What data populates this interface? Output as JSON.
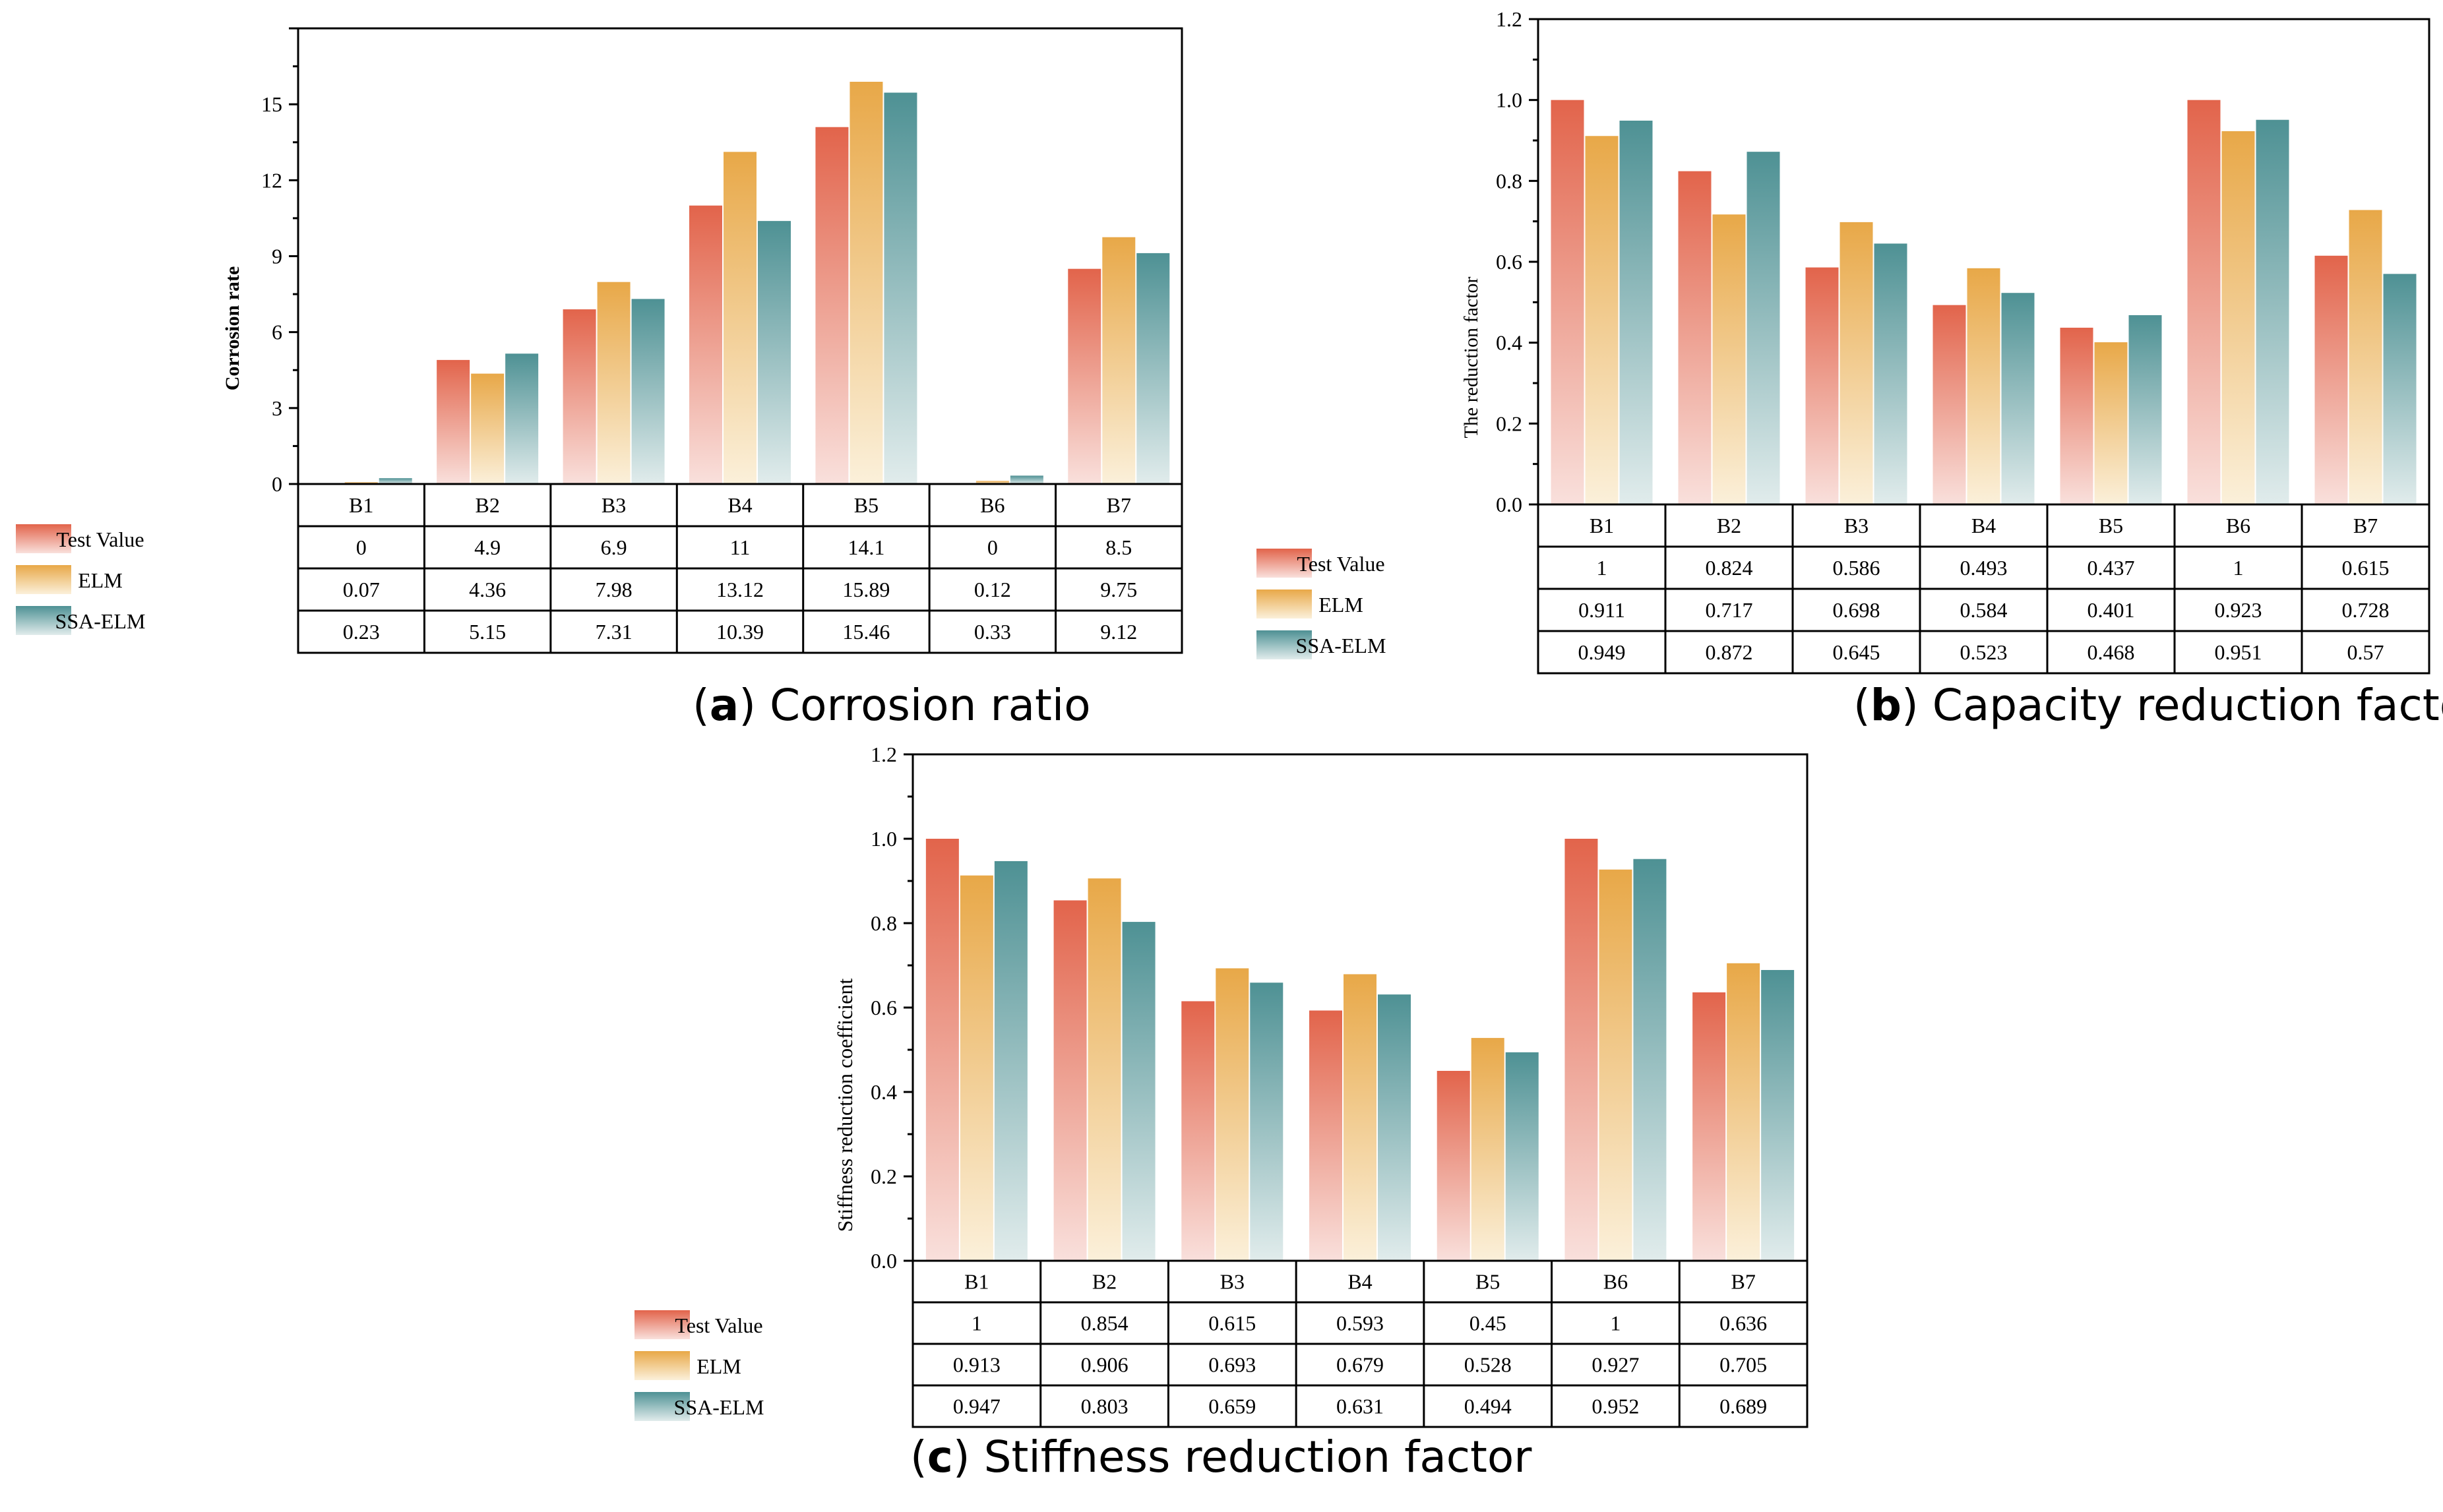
{
  "legend": [
    "Test Value",
    "ELM",
    "SSA-ELM"
  ],
  "colors": {
    "test_top": "#e2644b",
    "test_bottom": "#f9e0dc",
    "elm_top": "#e8a848",
    "elm_bottom": "#fbf0da",
    "ssa_top": "#4e9194",
    "ssa_bottom": "#e1ecec"
  },
  "chart_data": [
    {
      "type": "bar",
      "panel_letter": "a",
      "caption": "Corrosion ratio",
      "ylabel": "Corrosion rate",
      "ylim": [
        0,
        18
      ],
      "yticks": [
        "0",
        "3",
        "6",
        "9",
        "12",
        "15"
      ],
      "ytick_values": [
        0,
        3,
        6,
        9,
        12,
        15
      ],
      "categories": [
        "B1",
        "B2",
        "B3",
        "B4",
        "B5",
        "B6",
        "B7"
      ],
      "series": [
        {
          "name": "Test Value",
          "values": [
            0,
            4.9,
            6.9,
            11,
            14.1,
            0,
            8.5
          ],
          "labels": [
            "0",
            "4.9",
            "6.9",
            "11",
            "14.1",
            "0",
            "8.5"
          ]
        },
        {
          "name": "ELM",
          "values": [
            0.07,
            4.36,
            7.98,
            13.12,
            15.89,
            0.12,
            9.75
          ],
          "labels": [
            "0.07",
            "4.36",
            "7.98",
            "13.12",
            "15.89",
            "0.12",
            "9.75"
          ]
        },
        {
          "name": "SSA-ELM",
          "values": [
            0.23,
            5.15,
            7.31,
            10.39,
            15.46,
            0.33,
            9.12
          ],
          "labels": [
            "0.23",
            "5.15",
            "7.31",
            "10.39",
            "15.46",
            "0.33",
            "9.12"
          ]
        }
      ]
    },
    {
      "type": "bar",
      "panel_letter": "b",
      "caption": "Capacity reduction factor",
      "ylabel": "The reduction factor",
      "ylim": [
        0,
        1.2
      ],
      "yticks": [
        "0.0",
        "0.2",
        "0.4",
        "0.6",
        "0.8",
        "1.0",
        "1.2"
      ],
      "ytick_values": [
        0,
        0.2,
        0.4,
        0.6,
        0.8,
        1.0,
        1.2
      ],
      "categories": [
        "B1",
        "B2",
        "B3",
        "B4",
        "B5",
        "B6",
        "B7"
      ],
      "series": [
        {
          "name": "Test Value",
          "values": [
            1,
            0.824,
            0.586,
            0.493,
            0.437,
            1,
            0.615
          ],
          "labels": [
            "1",
            "0.824",
            "0.586",
            "0.493",
            "0.437",
            "1",
            "0.615"
          ]
        },
        {
          "name": "ELM",
          "values": [
            0.911,
            0.717,
            0.698,
            0.584,
            0.401,
            0.923,
            0.728
          ],
          "labels": [
            "0.911",
            "0.717",
            "0.698",
            "0.584",
            "0.401",
            "0.923",
            "0.728"
          ]
        },
        {
          "name": "SSA-ELM",
          "values": [
            0.949,
            0.872,
            0.645,
            0.523,
            0.468,
            0.951,
            0.57
          ],
          "labels": [
            "0.949",
            "0.872",
            "0.645",
            "0.523",
            "0.468",
            "0.951",
            "0.57"
          ]
        }
      ]
    },
    {
      "type": "bar",
      "panel_letter": "c",
      "caption": "Stiffness reduction factor",
      "ylabel": "Stiffness reduction coefficient",
      "ylim": [
        0,
        1.2
      ],
      "yticks": [
        "0.0",
        "0.2",
        "0.4",
        "0.6",
        "0.8",
        "1.0",
        "1.2"
      ],
      "ytick_values": [
        0,
        0.2,
        0.4,
        0.6,
        0.8,
        1.0,
        1.2
      ],
      "categories": [
        "B1",
        "B2",
        "B3",
        "B4",
        "B5",
        "B6",
        "B7"
      ],
      "series": [
        {
          "name": "Test Value",
          "values": [
            1,
            0.854,
            0.615,
            0.593,
            0.45,
            1,
            0.636
          ],
          "labels": [
            "1",
            "0.854",
            "0.615",
            "0.593",
            "0.45",
            "1",
            "0.636"
          ]
        },
        {
          "name": "ELM",
          "values": [
            0.913,
            0.906,
            0.693,
            0.679,
            0.528,
            0.927,
            0.705
          ],
          "labels": [
            "0.913",
            "0.906",
            "0.693",
            "0.679",
            "0.528",
            "0.927",
            "0.705"
          ]
        },
        {
          "name": "SSA-ELM",
          "values": [
            0.947,
            0.803,
            0.659,
            0.631,
            0.494,
            0.952,
            0.689
          ],
          "labels": [
            "0.947",
            "0.803",
            "0.659",
            "0.631",
            "0.494",
            "0.952",
            "0.689"
          ]
        }
      ]
    }
  ]
}
